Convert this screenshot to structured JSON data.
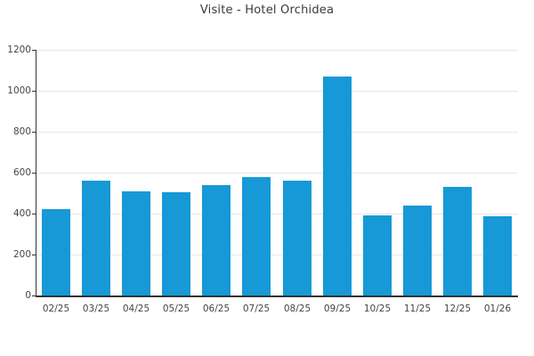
{
  "chart_data": {
    "type": "bar",
    "title": "Visite - Hotel Orchidea",
    "categories": [
      "02/25",
      "03/25",
      "04/25",
      "05/25",
      "06/25",
      "07/25",
      "08/25",
      "09/25",
      "10/25",
      "11/25",
      "12/25",
      "01/26"
    ],
    "values": [
      420,
      560,
      510,
      505,
      540,
      580,
      560,
      1070,
      390,
      440,
      530,
      385
    ],
    "xlabel": "",
    "ylabel": "",
    "ylim": [
      0,
      1200
    ],
    "yticks": [
      0,
      200,
      400,
      600,
      800,
      1000,
      1200
    ],
    "grid": true,
    "legend": "none",
    "bar_color": "#1699d6",
    "colors": {
      "background": "#ffffff",
      "grid": "#e7e7e7",
      "axis": "#333333",
      "tick_text": "#454545",
      "title_text": "#3a3a3a"
    }
  }
}
